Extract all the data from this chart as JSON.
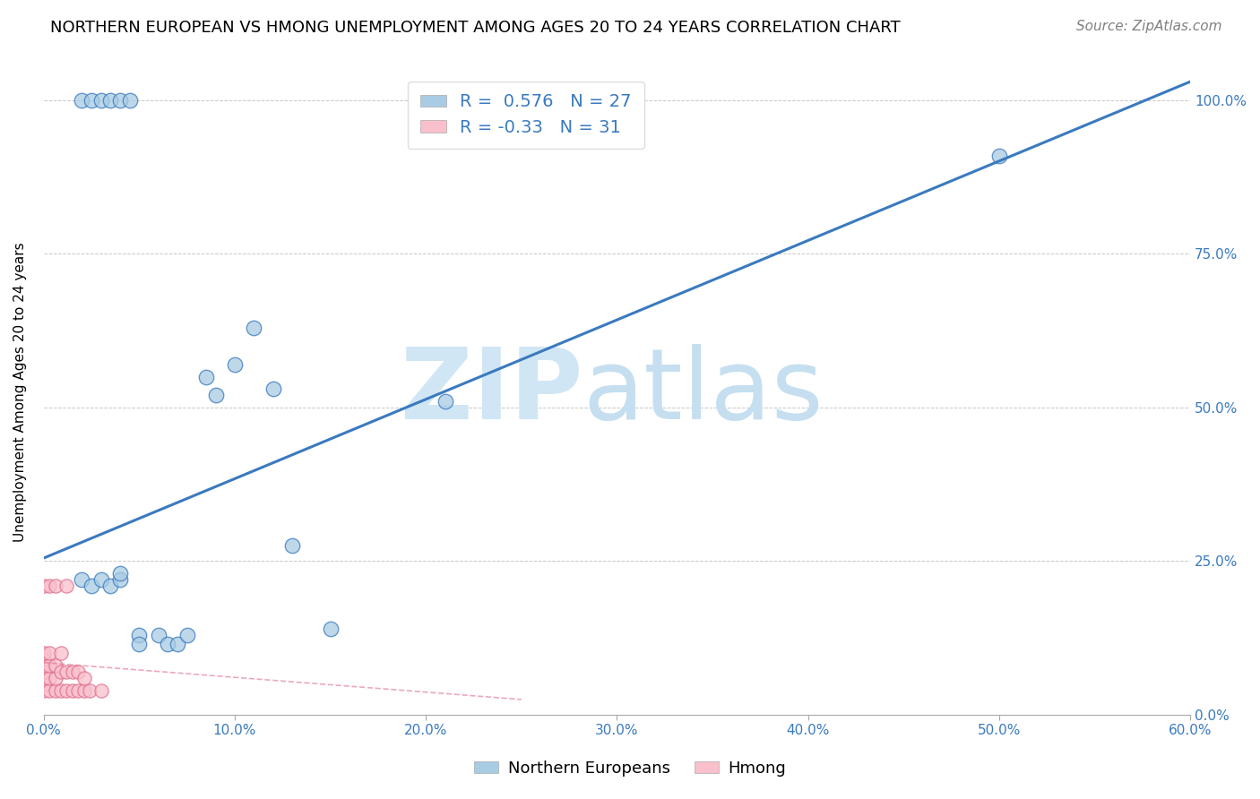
{
  "title": "NORTHERN EUROPEAN VS HMONG UNEMPLOYMENT AMONG AGES 20 TO 24 YEARS CORRELATION CHART",
  "source": "Source: ZipAtlas.com",
  "ylabel": "Unemployment Among Ages 20 to 24 years",
  "blue_r": 0.576,
  "blue_n": 27,
  "pink_r": -0.33,
  "pink_n": 31,
  "blue_color": "#a8cce4",
  "blue_line_color": "#3a7abf",
  "pink_color": "#f9c0cb",
  "pink_line_color": "#e07090",
  "xlim": [
    0.0,
    0.6
  ],
  "ylim": [
    0.0,
    1.05
  ],
  "xticks": [
    0.0,
    0.1,
    0.2,
    0.3,
    0.4,
    0.5,
    0.6
  ],
  "yticks": [
    0.0,
    0.25,
    0.5,
    0.75,
    1.0
  ],
  "blue_scatter_x": [
    0.02,
    0.025,
    0.03,
    0.035,
    0.04,
    0.04,
    0.05,
    0.05,
    0.06,
    0.065,
    0.07,
    0.075,
    0.085,
    0.09,
    0.1,
    0.11,
    0.12,
    0.13,
    0.15,
    0.21,
    0.5,
    0.02,
    0.025,
    0.03,
    0.035,
    0.04,
    0.045
  ],
  "blue_scatter_y": [
    0.22,
    0.21,
    0.22,
    0.21,
    0.22,
    0.23,
    0.13,
    0.115,
    0.13,
    0.115,
    0.115,
    0.13,
    0.55,
    0.52,
    0.57,
    0.63,
    0.53,
    0.275,
    0.14,
    0.51,
    0.91,
    1.0,
    1.0,
    1.0,
    1.0,
    1.0,
    1.0
  ],
  "pink_scatter_x": [
    0.0,
    0.0,
    0.0,
    0.0,
    0.0,
    0.0,
    0.0,
    0.0,
    0.003,
    0.003,
    0.003,
    0.003,
    0.003,
    0.006,
    0.006,
    0.006,
    0.006,
    0.009,
    0.009,
    0.009,
    0.012,
    0.012,
    0.012,
    0.015,
    0.015,
    0.018,
    0.018,
    0.021,
    0.021,
    0.024,
    0.03
  ],
  "pink_scatter_y": [
    0.04,
    0.05,
    0.06,
    0.07,
    0.08,
    0.09,
    0.1,
    0.21,
    0.04,
    0.06,
    0.08,
    0.1,
    0.21,
    0.04,
    0.06,
    0.08,
    0.21,
    0.04,
    0.07,
    0.1,
    0.04,
    0.07,
    0.21,
    0.04,
    0.07,
    0.04,
    0.07,
    0.04,
    0.06,
    0.04,
    0.04
  ],
  "blue_trend_x": [
    0.0,
    0.6
  ],
  "blue_trend_y": [
    0.255,
    1.03
  ],
  "pink_trend_x": [
    0.0,
    0.25
  ],
  "pink_trend_y": [
    0.085,
    0.025
  ],
  "legend_labels": [
    "Northern Europeans",
    "Hmong"
  ],
  "title_fontsize": 13,
  "label_fontsize": 11,
  "tick_fontsize": 11,
  "source_fontsize": 11,
  "bg_color": "#ffffff",
  "grid_color": "#c8c8c8"
}
